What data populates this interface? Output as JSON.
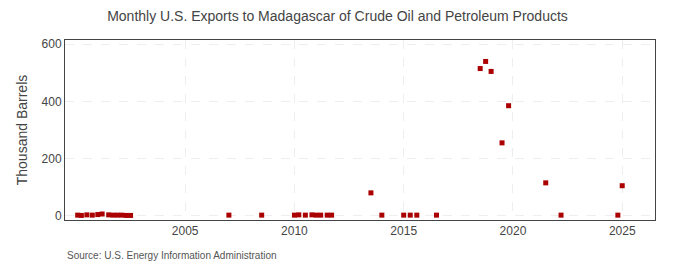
{
  "chart_data": {
    "type": "scatter",
    "title": "Monthly U.S. Exports to Madagascar of Crude Oil and Petroleum Products",
    "y_label": "Thousand Barrels",
    "annotations": [
      "Source: U.S. Energy Information Administration"
    ],
    "x": [
      2000.08,
      2000.25,
      2000.5,
      2000.75,
      2001.0,
      2001.2,
      2001.5,
      2001.7,
      2001.9,
      2002.1,
      2002.3,
      2002.5,
      2007.0,
      2008.5,
      2010.0,
      2010.2,
      2010.5,
      2010.8,
      2011.0,
      2011.2,
      2011.5,
      2011.7,
      2013.5,
      2014.0,
      2015.0,
      2015.3,
      2015.6,
      2016.5,
      2018.5,
      2018.75,
      2019.0,
      2019.5,
      2019.8,
      2021.5,
      2022.2,
      2024.8,
      2025.0
    ],
    "values": [
      2,
      1,
      3,
      2,
      4,
      6,
      3,
      2,
      2,
      2,
      1,
      1,
      2,
      2,
      2,
      3,
      2,
      3,
      2,
      2,
      2,
      2,
      80,
      2,
      2,
      2,
      2,
      2,
      515,
      540,
      505,
      255,
      385,
      115,
      2,
      2,
      105
    ],
    "color": "#aa0000",
    "marker": "square",
    "xlim": [
      1999.5,
      2026.5
    ],
    "ylim": [
      -15,
      615
    ],
    "xticks": [
      2005,
      2010,
      2015,
      2020,
      2025
    ],
    "yticks": [
      0,
      200,
      400,
      600
    ],
    "grid": true
  }
}
